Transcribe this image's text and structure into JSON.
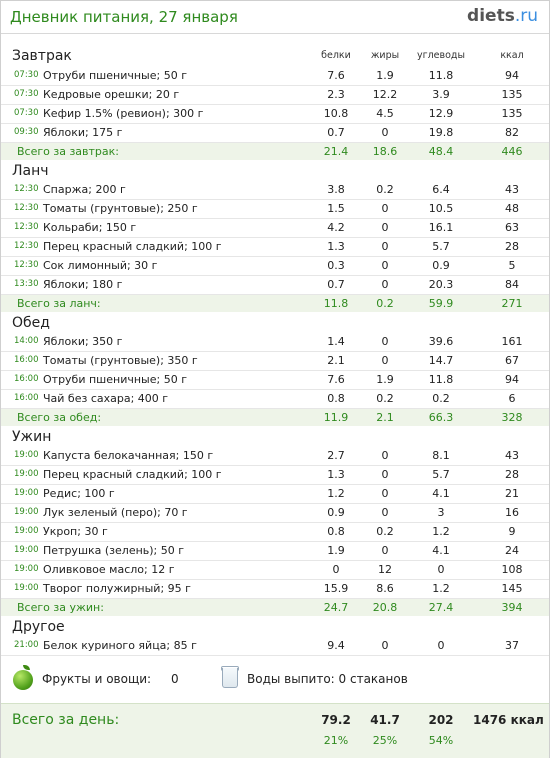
{
  "header": {
    "title": "Дневник питания, 27 января",
    "brand": "diets",
    "brand_tld": ".ru"
  },
  "columns": {
    "protein": "белки",
    "fat": "жиры",
    "carbs": "углеводы",
    "kcal": "ккал"
  },
  "meals": [
    {
      "title": "Завтрак",
      "items": [
        {
          "time": "07:30",
          "name": "Отруби пшеничные; 50 г",
          "p": "7.6",
          "f": "1.9",
          "c": "11.8",
          "k": "94"
        },
        {
          "time": "07:30",
          "name": "Кедровые орешки; 20 г",
          "p": "2.3",
          "f": "12.2",
          "c": "3.9",
          "k": "135"
        },
        {
          "time": "07:30",
          "name": "Кефир 1.5% (ревион); 300 г",
          "p": "10.8",
          "f": "4.5",
          "c": "12.9",
          "k": "135"
        },
        {
          "time": "09:30",
          "name": "Яблоки; 175 г",
          "p": "0.7",
          "f": "0",
          "c": "19.8",
          "k": "82"
        }
      ],
      "total": {
        "label": "Всего за завтрак:",
        "p": "21.4",
        "f": "18.6",
        "c": "48.4",
        "k": "446"
      }
    },
    {
      "title": "Ланч",
      "items": [
        {
          "time": "12:30",
          "name": "Спаржа; 200 г",
          "p": "3.8",
          "f": "0.2",
          "c": "6.4",
          "k": "43"
        },
        {
          "time": "12:30",
          "name": "Томаты (грунтовые); 250 г",
          "p": "1.5",
          "f": "0",
          "c": "10.5",
          "k": "48"
        },
        {
          "time": "12:30",
          "name": "Кольраби; 150 г",
          "p": "4.2",
          "f": "0",
          "c": "16.1",
          "k": "63"
        },
        {
          "time": "12:30",
          "name": "Перец красный сладкий; 100 г",
          "p": "1.3",
          "f": "0",
          "c": "5.7",
          "k": "28"
        },
        {
          "time": "12:30",
          "name": "Сок лимонный; 30 г",
          "p": "0.3",
          "f": "0",
          "c": "0.9",
          "k": "5"
        },
        {
          "time": "13:30",
          "name": "Яблоки; 180 г",
          "p": "0.7",
          "f": "0",
          "c": "20.3",
          "k": "84"
        }
      ],
      "total": {
        "label": "Всего за ланч:",
        "p": "11.8",
        "f": "0.2",
        "c": "59.9",
        "k": "271"
      }
    },
    {
      "title": "Обед",
      "items": [
        {
          "time": "14:00",
          "name": "Яблоки; 350 г",
          "p": "1.4",
          "f": "0",
          "c": "39.6",
          "k": "161"
        },
        {
          "time": "16:00",
          "name": "Томаты (грунтовые); 350 г",
          "p": "2.1",
          "f": "0",
          "c": "14.7",
          "k": "67"
        },
        {
          "time": "16:00",
          "name": "Отруби пшеничные; 50 г",
          "p": "7.6",
          "f": "1.9",
          "c": "11.8",
          "k": "94"
        },
        {
          "time": "16:00",
          "name": "Чай без сахара; 400 г",
          "p": "0.8",
          "f": "0.2",
          "c": "0.2",
          "k": "6"
        }
      ],
      "total": {
        "label": "Всего за обед:",
        "p": "11.9",
        "f": "2.1",
        "c": "66.3",
        "k": "328"
      }
    },
    {
      "title": "Ужин",
      "items": [
        {
          "time": "19:00",
          "name": "Капуста белокачанная; 150 г",
          "p": "2.7",
          "f": "0",
          "c": "8.1",
          "k": "43"
        },
        {
          "time": "19:00",
          "name": "Перец красный сладкий; 100 г",
          "p": "1.3",
          "f": "0",
          "c": "5.7",
          "k": "28"
        },
        {
          "time": "19:00",
          "name": "Редис; 100 г",
          "p": "1.2",
          "f": "0",
          "c": "4.1",
          "k": "21"
        },
        {
          "time": "19:00",
          "name": "Лук зеленый (перо); 70 г",
          "p": "0.9",
          "f": "0",
          "c": "3",
          "k": "16"
        },
        {
          "time": "19:00",
          "name": "Укроп; 30 г",
          "p": "0.8",
          "f": "0.2",
          "c": "1.2",
          "k": "9"
        },
        {
          "time": "19:00",
          "name": "Петрушка (зелень); 50 г",
          "p": "1.9",
          "f": "0",
          "c": "4.1",
          "k": "24"
        },
        {
          "time": "19:00",
          "name": "Оливковое масло; 12 г",
          "p": "0",
          "f": "12",
          "c": "0",
          "k": "108"
        },
        {
          "time": "19:00",
          "name": "Творог полужирный; 95 г",
          "p": "15.9",
          "f": "8.6",
          "c": "1.2",
          "k": "145"
        }
      ],
      "total": {
        "label": "Всего за ужин:",
        "p": "24.7",
        "f": "20.8",
        "c": "27.4",
        "k": "394"
      }
    },
    {
      "title": "Другое",
      "items": [
        {
          "time": "21:00",
          "name": "Белок куриного яйца; 85 г",
          "p": "9.4",
          "f": "0",
          "c": "0",
          "k": "37"
        }
      ]
    }
  ],
  "extras": {
    "fruits_label": "Фрукты и овощи:",
    "fruits_value": "0",
    "water_label": "Воды выпито: 0 стаканов"
  },
  "day_total": {
    "label": "Всего за день:",
    "p": "79.2",
    "f": "41.7",
    "c": "202",
    "k": "1476 ккал",
    "p_pct": "21%",
    "f_pct": "25%",
    "c_pct": "54%"
  },
  "colors": {
    "accent_green": "#2f8a1e",
    "total_band": "#eef4e8",
    "brand_tld_blue": "#3a8ee0"
  }
}
